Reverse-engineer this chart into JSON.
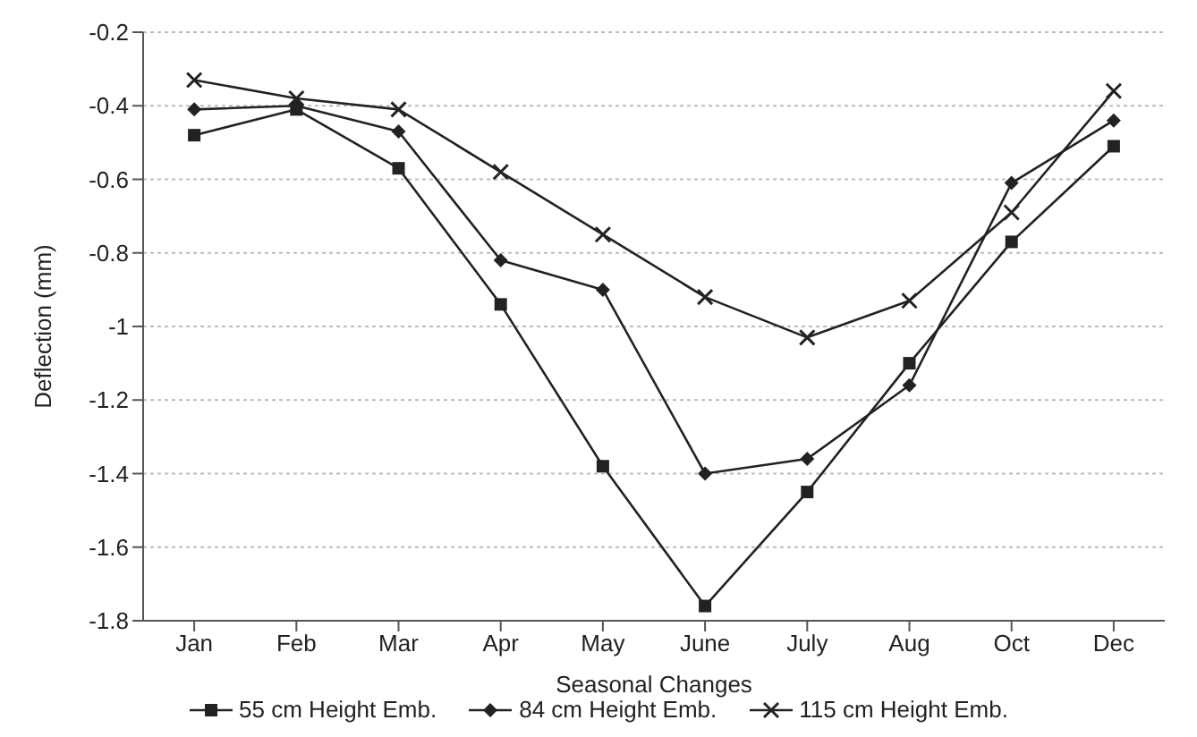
{
  "chart_data": {
    "type": "line",
    "xlabel": "Seasonal Changes",
    "ylabel": "Deflection (mm)",
    "categories": [
      "Jan",
      "Feb",
      "Mar",
      "Apr",
      "May",
      "June",
      "July",
      "Aug",
      "Oct",
      "Dec"
    ],
    "ylim": [
      -1.8,
      -0.2
    ],
    "yticks": [
      -1.8,
      -1.6,
      -1.4,
      -1.2,
      -1,
      -0.8,
      -0.6,
      -0.4,
      -0.2
    ],
    "grid": "y",
    "legend": "bottom",
    "line_style": "solid",
    "series": [
      {
        "name": "55 cm Height Emb.",
        "color": "#222222",
        "marker": "square",
        "values": [
          -0.48,
          -0.41,
          -0.57,
          -0.94,
          -1.38,
          -1.76,
          -1.45,
          -1.1,
          -0.77,
          -0.51
        ]
      },
      {
        "name": "84 cm Height Emb.",
        "color": "#222222",
        "marker": "diamond",
        "values": [
          -0.41,
          -0.4,
          -0.47,
          -0.82,
          -0.9,
          -1.4,
          -1.36,
          -1.16,
          -0.61,
          -0.44
        ]
      },
      {
        "name": "115 cm Height Emb.",
        "color": "#222222",
        "marker": "cross",
        "values": [
          -0.33,
          -0.38,
          -0.41,
          -0.58,
          -0.75,
          -0.92,
          -1.03,
          -0.93,
          -0.69,
          -0.36
        ]
      }
    ]
  }
}
